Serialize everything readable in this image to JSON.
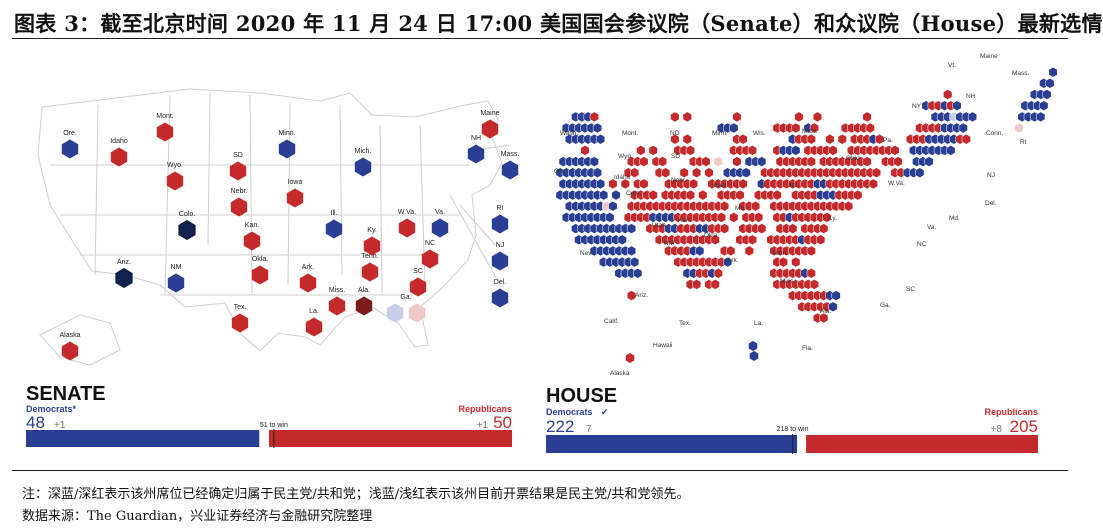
{
  "title": "图表 3：截至北京时间 2020 年 11 月 24 日 17:00 美国国会参议院（Senate）和众议院（House）最新选情",
  "colors": {
    "dem_called": "#2a3f94",
    "rep_called": "#c42a2b",
    "dem_lean": "#c7cde8",
    "rep_lean": "#f0c9c7",
    "dem_dark": "#13214f",
    "rep_dark": "#7a1c1c",
    "map_line": "#cfcfcf"
  },
  "senate": {
    "heading": "SENATE",
    "dem_label": "Democrats*",
    "dem_seats": "48",
    "dem_pending": "+1",
    "rep_label": "Republicans",
    "rep_seats": "50",
    "rep_pending": "+1",
    "to_win": "51 to win",
    "dem_total": 48,
    "rep_total": 50,
    "total_seats": 100,
    "states": [
      {
        "label": "Ore.",
        "status": "dem"
      },
      {
        "label": "Idaho",
        "status": "rep"
      },
      {
        "label": "Mont.",
        "status": "rep"
      },
      {
        "label": "Wyo.",
        "status": "rep"
      },
      {
        "label": "SD",
        "status": "rep"
      },
      {
        "label": "Nebr.",
        "status": "rep"
      },
      {
        "label": "Minn.",
        "status": "dem"
      },
      {
        "label": "Iowa",
        "status": "rep"
      },
      {
        "label": "Colo.",
        "status": "dem-flip"
      },
      {
        "label": "Kan.",
        "status": "rep"
      },
      {
        "label": "Ariz.",
        "status": "dem-flip"
      },
      {
        "label": "NM",
        "status": "dem"
      },
      {
        "label": "Okla.",
        "status": "rep"
      },
      {
        "label": "Ark.",
        "status": "rep"
      },
      {
        "label": "Tex.",
        "status": "rep"
      },
      {
        "label": "La.",
        "status": "rep"
      },
      {
        "label": "Miss.",
        "status": "rep"
      },
      {
        "label": "Ala.",
        "status": "rep-flip"
      },
      {
        "label": "Tenn.",
        "status": "rep"
      },
      {
        "label": "Ky.",
        "status": "rep"
      },
      {
        "label": "Ill.",
        "status": "dem"
      },
      {
        "label": "Mich.",
        "status": "dem"
      },
      {
        "label": "W.Va.",
        "status": "rep"
      },
      {
        "label": "Va.",
        "status": "dem"
      },
      {
        "label": "NC",
        "status": "rep"
      },
      {
        "label": "SC",
        "status": "rep"
      },
      {
        "label": "Ga.",
        "status": "pending"
      },
      {
        "label": "NH",
        "status": "dem"
      },
      {
        "label": "Maine",
        "status": "rep"
      },
      {
        "label": "Mass.",
        "status": "dem"
      },
      {
        "label": "RI",
        "status": "dem"
      },
      {
        "label": "NJ",
        "status": "dem"
      },
      {
        "label": "Del.",
        "status": "dem"
      },
      {
        "label": "Alaska",
        "status": "rep"
      }
    ]
  },
  "house": {
    "heading": "HOUSE",
    "dem_label": "Democrats",
    "dem_seats": "222",
    "dem_pending": "7",
    "rep_label": "Republicans",
    "rep_seats": "205",
    "rep_pending": "+8",
    "to_win": "218 to win",
    "dem_total": 222,
    "rep_total": 205,
    "total_seats": 435,
    "state_labels": [
      "Wash.",
      "Ore.",
      "Mont.",
      "ND",
      "Wyo.",
      "SD",
      "Idaho",
      "Minn.",
      "Wis.",
      "Mich.",
      "Nev.",
      "Colo.",
      "Nebr.",
      "Iowa",
      "Ill.",
      "Ind.",
      "Ohio",
      "Pa.",
      "NY",
      "Vt.",
      "Maine",
      "NH",
      "Mass.",
      "Conn.",
      "RI",
      "NJ",
      "Del.",
      "Md.",
      "Va.",
      "W.Va.",
      "Ky.",
      "Tenn.",
      "NC",
      "SC",
      "Ga.",
      "Ala.",
      "Miss.",
      "La.",
      "Ark.",
      "Mo.",
      "Kan.",
      "Okla.",
      "Utah",
      "Ariz.",
      "NM",
      "Calif.",
      "Tex.",
      "Fla.",
      "Hawaii",
      "Alaska"
    ]
  },
  "notes": {
    "line1": "注：深蓝/深红表示该州席位已经确定归属于民主党/共和党；浅蓝/浅红表示该州目前开票结果是民主党/共和党领先。",
    "line2": "数据来源：The Guardian，兴业证券经济与金融研究院整理"
  }
}
